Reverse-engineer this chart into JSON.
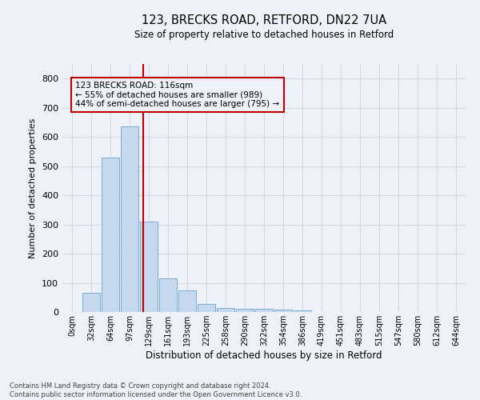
{
  "title1": "123, BRECKS ROAD, RETFORD, DN22 7UA",
  "title2": "Size of property relative to detached houses in Retford",
  "xlabel": "Distribution of detached houses by size in Retford",
  "ylabel": "Number of detached properties",
  "footer1": "Contains HM Land Registry data © Crown copyright and database right 2024.",
  "footer2": "Contains public sector information licensed under the Open Government Licence v3.0.",
  "bar_labels": [
    "0sqm",
    "32sqm",
    "64sqm",
    "97sqm",
    "129sqm",
    "161sqm",
    "193sqm",
    "225sqm",
    "258sqm",
    "290sqm",
    "322sqm",
    "354sqm",
    "386sqm",
    "419sqm",
    "451sqm",
    "483sqm",
    "515sqm",
    "547sqm",
    "580sqm",
    "612sqm",
    "644sqm"
  ],
  "bar_values": [
    0,
    65,
    530,
    635,
    310,
    115,
    75,
    28,
    15,
    10,
    10,
    8,
    5,
    0,
    0,
    0,
    0,
    0,
    0,
    0,
    0
  ],
  "bar_color": "#c5d8ee",
  "bar_edge_color": "#7aadd4",
  "grid_color": "#d0d8e8",
  "bg_color": "#eef2f8",
  "vline_x": 3.72,
  "vline_color": "#c00000",
  "annotation_line1": "123 BRECKS ROAD: 116sqm",
  "annotation_line2": "← 55% of detached houses are smaller (989)",
  "annotation_line3": "44% of semi-detached houses are larger (795) →",
  "annotation_box_color": "#c00000",
  "ylim": [
    0,
    850
  ],
  "yticks": [
    0,
    100,
    200,
    300,
    400,
    500,
    600,
    700,
    800
  ]
}
